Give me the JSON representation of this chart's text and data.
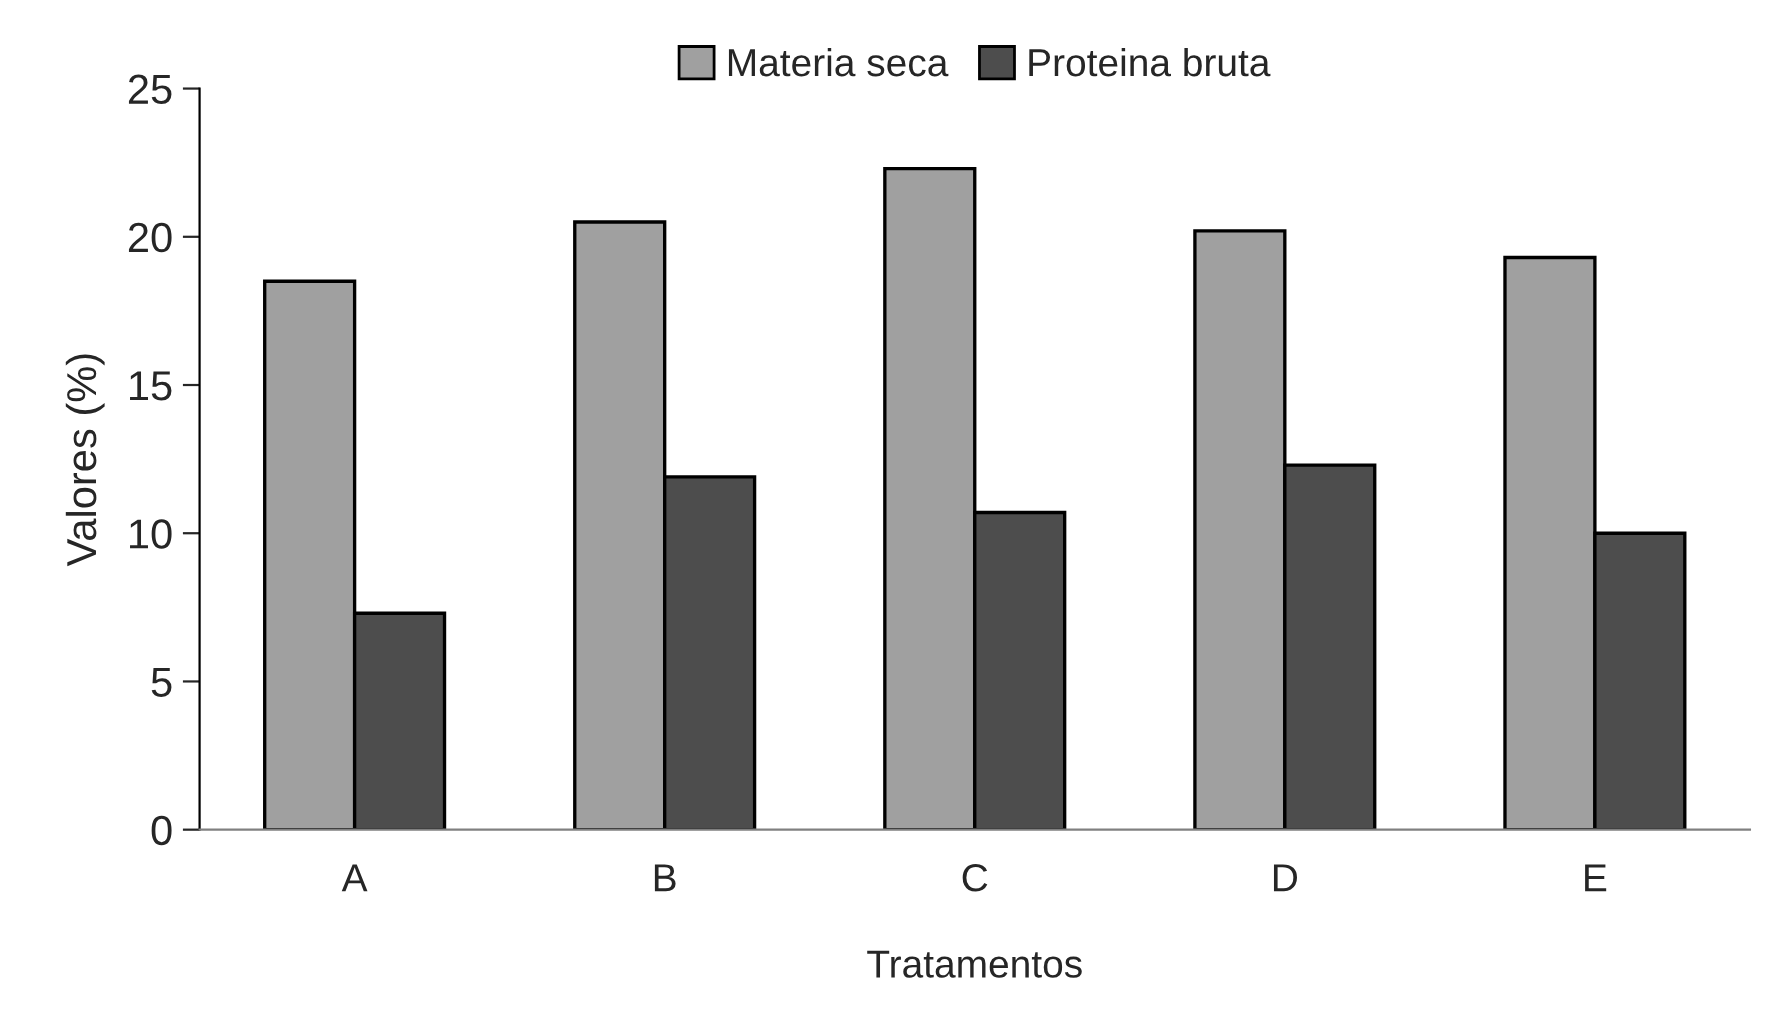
{
  "chart_data": {
    "type": "bar",
    "xlabel": "Tratamentos",
    "ylabel": "Valores (%)",
    "categories": [
      "A",
      "B",
      "C",
      "D",
      "E"
    ],
    "series": [
      {
        "name": "Materia seca",
        "color": "#a0a0a0",
        "values": [
          18.5,
          20.5,
          22.3,
          20.2,
          19.3
        ]
      },
      {
        "name": "Proteina bruta",
        "color": "#4d4d4d",
        "values": [
          7.3,
          11.9,
          10.7,
          12.3,
          10.0
        ]
      }
    ],
    "ylim": [
      0,
      25
    ],
    "yticks": [
      0,
      5,
      10,
      15,
      20,
      25
    ],
    "grid": false,
    "legend": "top"
  }
}
